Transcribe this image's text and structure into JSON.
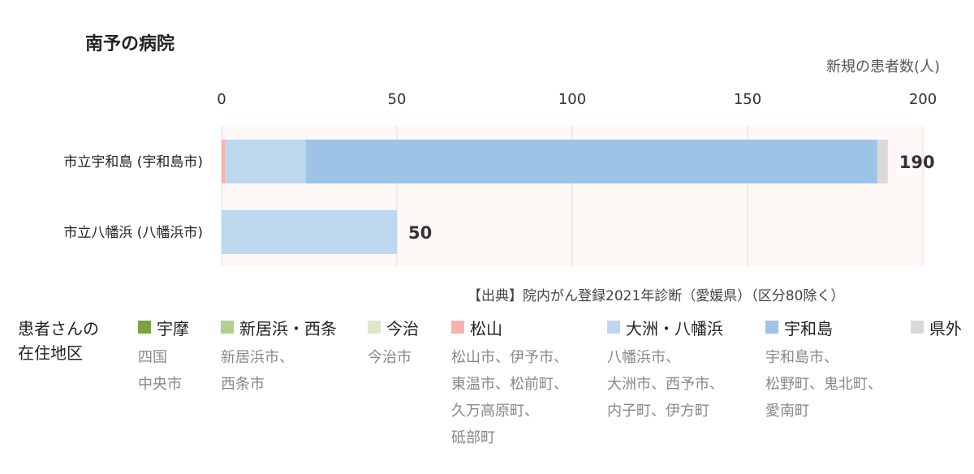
{
  "title": "南予の病院",
  "unit_label": "新規の患者数(人)",
  "source": "【出典】院内がん登録2021年診断（愛媛県）（区分80除く）",
  "legend_title": [
    "患者さんの",
    "在住地区"
  ],
  "legend": [
    {
      "label": "宇摩",
      "color": "#7aa33f",
      "areas": [
        "四国",
        "中央市"
      ]
    },
    {
      "label": "新居浜・西条",
      "color": "#b3cf8c",
      "areas": [
        "新居浜市、",
        "西条市"
      ]
    },
    {
      "label": "今治",
      "color": "#dbe8c9",
      "areas": [
        "今治市"
      ]
    },
    {
      "label": "松山",
      "color": "#f6b2ab",
      "areas": [
        "松山市、伊予市、",
        "東温市、松前町、",
        "久万高原町、",
        "砥部町"
      ]
    },
    {
      "label": "大洲・八幡浜",
      "color": "#bdd7ee",
      "areas": [
        "八幡浜市、",
        "大洲市、西予市、",
        "内子町、伊方町"
      ]
    },
    {
      "label": "宇和島",
      "color": "#9dc3e6",
      "areas": [
        "宇和島市、",
        "松野町、鬼北町、",
        "愛南町"
      ]
    },
    {
      "label": "県外",
      "color": "#d9d9d9",
      "areas": []
    }
  ],
  "chart_data": {
    "type": "bar",
    "orientation": "horizontal",
    "stacked": true,
    "xlim": [
      0,
      200
    ],
    "xticks": [
      0,
      50,
      100,
      150,
      200
    ],
    "grid": true,
    "categories": [
      "市立宇和島 (宇和島市)",
      "市立八幡浜 (八幡浜市)"
    ],
    "series": [
      {
        "name": "宇摩",
        "color": "#7aa33f",
        "values": [
          0,
          0
        ]
      },
      {
        "name": "新居浜・西条",
        "color": "#b3cf8c",
        "values": [
          0,
          0
        ]
      },
      {
        "name": "今治",
        "color": "#dbe8c9",
        "values": [
          0,
          0
        ]
      },
      {
        "name": "松山",
        "color": "#f6b2ab",
        "values": [
          1,
          0
        ]
      },
      {
        "name": "大洲・八幡浜",
        "color": "#bdd7ee",
        "values": [
          23,
          50
        ]
      },
      {
        "name": "宇和島",
        "color": "#9dc3e6",
        "values": [
          163,
          0
        ]
      },
      {
        "name": "県外",
        "color": "#d9d9d9",
        "values": [
          3,
          0
        ]
      }
    ],
    "totals": [
      190,
      50
    ],
    "plot_background": "#fef8f7"
  }
}
